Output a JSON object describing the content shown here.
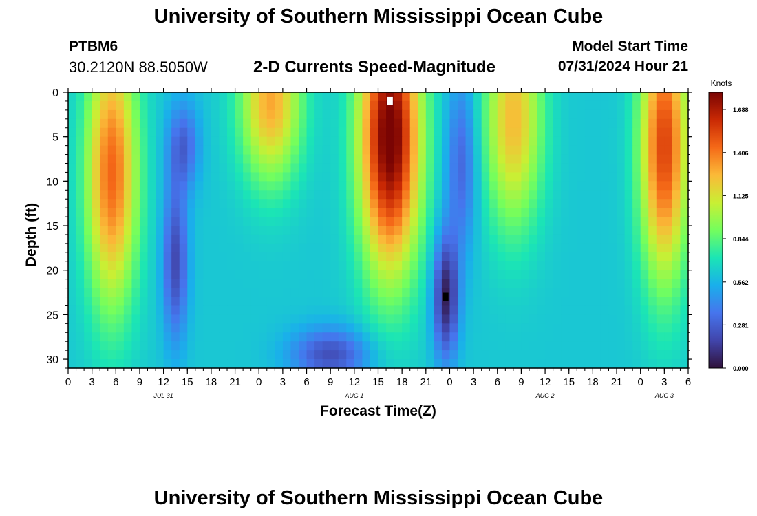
{
  "header": {
    "title": "University of Southern Mississippi Ocean Cube",
    "station_id": "PTBM6",
    "coordinates": "30.2120N  88.5050W",
    "subtitle": "2-D Currents Speed-Magnitude",
    "start_label": "Model Start Time",
    "start_value": "07/31/2024 Hour 21"
  },
  "footer": {
    "title": "University of Southern Mississippi Ocean Cube"
  },
  "chart_data": {
    "type": "heatmap",
    "title": "2-D Currents Speed-Magnitude",
    "xlabel": "Forecast Time(Z)",
    "ylabel": "Depth (ft)",
    "x_range_hours": [
      0,
      78
    ],
    "x_tick_labels": [
      "0",
      "3",
      "6",
      "9",
      "12",
      "15",
      "18",
      "21",
      "0",
      "3",
      "6",
      "9",
      "12",
      "15",
      "18",
      "21",
      "0",
      "3",
      "6",
      "9",
      "12",
      "15",
      "18",
      "21",
      "0",
      "3",
      "6"
    ],
    "date_labels": [
      {
        "label": "JUL 31",
        "hour": 12
      },
      {
        "label": "AUG 1",
        "hour": 36
      },
      {
        "label": "AUG 2",
        "hour": 60
      },
      {
        "label": "AUG 3",
        "hour": 75
      }
    ],
    "y_range_ft": [
      0,
      31
    ],
    "y_ticks": [
      0,
      5,
      10,
      15,
      20,
      25,
      30
    ],
    "colorbar": {
      "label": "Knots",
      "min": 0.0,
      "max": 1.8,
      "ticks": [
        "0.000",
        "0.281",
        "0.562",
        "0.844",
        "1.125",
        "1.406",
        "1.688"
      ],
      "colormap": "turbo"
    },
    "features": [
      {
        "hour": 5.5,
        "depth_ft": 9,
        "speed_knots": 1.45,
        "spread_hours": 3.2,
        "spread_ft": 15
      },
      {
        "hour": 25.5,
        "depth_ft": 1,
        "speed_knots": 1.3,
        "spread_hours": 3.8,
        "spread_ft": 9
      },
      {
        "hour": 40.5,
        "depth_ft": 5,
        "speed_knots": 1.85,
        "spread_hours": 3.8,
        "spread_ft": 15
      },
      {
        "hour": 56,
        "depth_ft": 3,
        "speed_knots": 1.25,
        "spread_hours": 3.6,
        "spread_ft": 12
      },
      {
        "hour": 75,
        "depth_ft": 6,
        "speed_knots": 1.55,
        "spread_hours": 3.0,
        "spread_ft": 15
      },
      {
        "hour": 13.5,
        "depth_ft": 19,
        "speed_knots": 0.2,
        "spread_hours": 1.6,
        "spread_ft": 9
      },
      {
        "hour": 47.5,
        "depth_ft": 23,
        "speed_knots": 0.05,
        "spread_hours": 1.6,
        "spread_ft": 7
      },
      {
        "hour": 14.5,
        "depth_ft": 6,
        "speed_knots": 0.3,
        "spread_hours": 2.0,
        "spread_ft": 5
      },
      {
        "hour": 49.5,
        "depth_ft": 8,
        "speed_knots": 0.3,
        "spread_hours": 2.0,
        "spread_ft": 10
      },
      {
        "hour": 33,
        "depth_ft": 29.5,
        "speed_knots": 0.22,
        "spread_hours": 5.0,
        "spread_ft": 3
      }
    ],
    "annotations": [
      {
        "hour": 40.5,
        "depth_ft": 1,
        "marker": "white"
      },
      {
        "hour": 47.5,
        "depth_ft": 23,
        "marker": "black"
      }
    ]
  }
}
